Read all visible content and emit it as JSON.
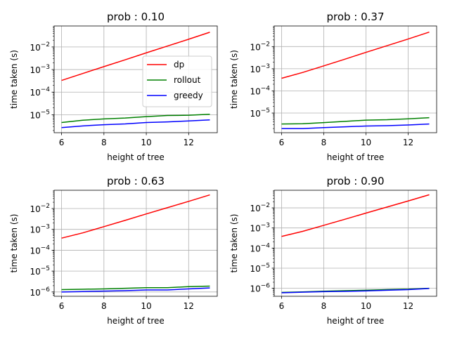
{
  "chart_data": [
    {
      "type": "line",
      "title": "prob : 0.10",
      "xlabel": "height of tree",
      "ylabel": "time taken (s)",
      "yscale": "log",
      "grid": true,
      "legend": {
        "location": "center-right",
        "entries": [
          "dp",
          "rollout",
          "greedy"
        ]
      },
      "x": [
        6,
        7,
        8,
        9,
        10,
        11,
        12,
        13
      ],
      "xticks": [
        6,
        8,
        10,
        12
      ],
      "yticks": [
        1e-05,
        0.0001,
        0.001,
        0.01
      ],
      "yticklabels": [
        "10^-5",
        "10^-4",
        "10^-3",
        "10^-2"
      ],
      "ylim": [
        1.6e-06,
        0.085
      ],
      "series": [
        {
          "name": "dp",
          "color": "#ff0000",
          "values": [
            0.00033,
            0.00067,
            0.00135,
            0.0027,
            0.0055,
            0.011,
            0.022,
            0.045
          ]
        },
        {
          "name": "rollout",
          "color": "#008000",
          "values": [
            4.5e-06,
            5.7e-06,
            6.5e-06,
            7.1e-06,
            8.2e-06,
            9.2e-06,
            9.5e-06,
            1.05e-05
          ]
        },
        {
          "name": "greedy",
          "color": "#0000ff",
          "values": [
            2.7e-06,
            3.2e-06,
            3.6e-06,
            3.9e-06,
            4.5e-06,
            4.8e-06,
            5.3e-06,
            5.9e-06
          ]
        }
      ]
    },
    {
      "type": "line",
      "title": "prob : 0.37",
      "xlabel": "height of tree",
      "ylabel": "time taken (s)",
      "yscale": "log",
      "grid": true,
      "x": [
        6,
        7,
        8,
        9,
        10,
        11,
        12,
        13
      ],
      "xticks": [
        6,
        8,
        10,
        12
      ],
      "yticks": [
        1e-05,
        0.0001,
        0.001,
        0.01
      ],
      "yticklabels": [
        "10^-5",
        "10^-4",
        "10^-3",
        "10^-2"
      ],
      "ylim": [
        1.3e-06,
        0.085
      ],
      "series": [
        {
          "name": "dp",
          "color": "#ff0000",
          "values": [
            0.00037,
            0.00068,
            0.00135,
            0.0027,
            0.0055,
            0.011,
            0.022,
            0.045
          ]
        },
        {
          "name": "rollout",
          "color": "#008000",
          "values": [
            3.2e-06,
            3.3e-06,
            3.7e-06,
            4.2e-06,
            4.8e-06,
            5e-06,
            5.5e-06,
            6.2e-06
          ]
        },
        {
          "name": "greedy",
          "color": "#0000ff",
          "values": [
            2e-06,
            2e-06,
            2.2e-06,
            2.4e-06,
            2.6e-06,
            2.7e-06,
            2.9e-06,
            3.2e-06
          ]
        }
      ]
    },
    {
      "type": "line",
      "title": "prob : 0.63",
      "xlabel": "height of tree",
      "ylabel": "time taken (s)",
      "yscale": "log",
      "grid": true,
      "x": [
        6,
        7,
        8,
        9,
        10,
        11,
        12,
        13
      ],
      "xticks": [
        6,
        8,
        10,
        12
      ],
      "yticks": [
        1e-06,
        1e-05,
        0.0001,
        0.001,
        0.01
      ],
      "yticklabels": [
        "10^-6",
        "10^-5",
        "10^-4",
        "10^-3",
        "10^-2"
      ],
      "ylim": [
        6.2e-07,
        0.075
      ],
      "series": [
        {
          "name": "dp",
          "color": "#ff0000",
          "values": [
            0.00038,
            0.00068,
            0.00135,
            0.0027,
            0.0055,
            0.011,
            0.022,
            0.045
          ]
        },
        {
          "name": "rollout",
          "color": "#008000",
          "values": [
            1.3e-06,
            1.35e-06,
            1.4e-06,
            1.5e-06,
            1.6e-06,
            1.6e-06,
            1.8e-06,
            1.9e-06
          ]
        },
        {
          "name": "greedy",
          "color": "#0000ff",
          "values": [
            1e-06,
            1.05e-06,
            1.1e-06,
            1.15e-06,
            1.25e-06,
            1.25e-06,
            1.4e-06,
            1.55e-06
          ]
        }
      ]
    },
    {
      "type": "line",
      "title": "prob : 0.90",
      "xlabel": "height of tree",
      "ylabel": "time taken (s)",
      "yscale": "log",
      "grid": true,
      "x": [
        6,
        7,
        8,
        9,
        10,
        11,
        12,
        13
      ],
      "xticks": [
        6,
        8,
        10,
        12
      ],
      "yticks": [
        1e-06,
        1e-05,
        0.0001,
        0.001,
        0.01
      ],
      "yticklabels": [
        "10^-6",
        "10^-5",
        "10^-4",
        "10^-3",
        "10^-2"
      ],
      "ylim": [
        4e-07,
        0.075
      ],
      "series": [
        {
          "name": "dp",
          "color": "#ff0000",
          "values": [
            0.00038,
            0.00068,
            0.00135,
            0.0027,
            0.0055,
            0.011,
            0.022,
            0.045
          ]
        },
        {
          "name": "rollout",
          "color": "#008000",
          "values": [
            6.2e-07,
            6.6e-07,
            7.2e-07,
            7.6e-07,
            8e-07,
            8.6e-07,
            9e-07,
            1e-06
          ]
        },
        {
          "name": "greedy",
          "color": "#0000ff",
          "values": [
            6e-07,
            6.4e-07,
            6.8e-07,
            7e-07,
            7.4e-07,
            8e-07,
            8.6e-07,
            9.8e-07
          ]
        }
      ]
    }
  ]
}
